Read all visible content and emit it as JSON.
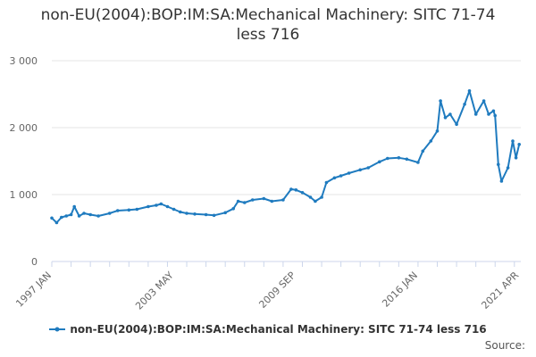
{
  "title_line1": "non-EU(2004):BOP:IM:SA:Mechanical Machinery: SITC 71-74",
  "title_line2": "less 716",
  "source_label": "Source:",
  "colors": {
    "series": "#1f7bbf",
    "grid": "#e6e6e6",
    "axis": "#ccd6eb",
    "text": "#666666"
  },
  "chart_data": {
    "type": "line",
    "title": "non-EU(2004):BOP:IM:SA:Mechanical Machinery: SITC 71-74 less 716",
    "xlabel": "",
    "ylabel": "",
    "x_range": [
      "1997-01",
      "2021-05"
    ],
    "ylim": [
      0,
      3000
    ],
    "y_ticks": [
      0,
      1000,
      2000,
      3000
    ],
    "y_tick_labels": [
      "0",
      "1 000",
      "2 000",
      "3 000"
    ],
    "x_tick_labels": [
      {
        "label": "1997 JAN",
        "date": "1997-01"
      },
      {
        "label": "2003 MAY",
        "date": "2003-05"
      },
      {
        "label": "2009 SEP",
        "date": "2009-09"
      },
      {
        "label": "2016 JAN",
        "date": "2016-01"
      },
      {
        "label": "2021 APR",
        "date": "2021-04"
      }
    ],
    "grid": true,
    "legend": "bottom-center",
    "series": [
      {
        "name": "non-EU(2004):BOP:IM:SA:Mechanical Machinery: SITC 71-74 less 716",
        "points": [
          [
            "1997-01",
            650
          ],
          [
            "1997-04",
            580
          ],
          [
            "1997-07",
            660
          ],
          [
            "1997-10",
            680
          ],
          [
            "1998-01",
            700
          ],
          [
            "1998-03",
            820
          ],
          [
            "1998-06",
            680
          ],
          [
            "1998-09",
            720
          ],
          [
            "1999-01",
            700
          ],
          [
            "1999-06",
            680
          ],
          [
            "2000-01",
            720
          ],
          [
            "2000-06",
            760
          ],
          [
            "2001-01",
            770
          ],
          [
            "2001-06",
            780
          ],
          [
            "2002-01",
            820
          ],
          [
            "2002-06",
            840
          ],
          [
            "2002-09",
            860
          ],
          [
            "2003-01",
            820
          ],
          [
            "2003-05",
            780
          ],
          [
            "2003-09",
            740
          ],
          [
            "2004-01",
            720
          ],
          [
            "2004-06",
            710
          ],
          [
            "2005-01",
            700
          ],
          [
            "2005-06",
            690
          ],
          [
            "2006-01",
            730
          ],
          [
            "2006-06",
            790
          ],
          [
            "2006-09",
            900
          ],
          [
            "2007-01",
            880
          ],
          [
            "2007-06",
            920
          ],
          [
            "2008-01",
            940
          ],
          [
            "2008-06",
            900
          ],
          [
            "2009-01",
            920
          ],
          [
            "2009-06",
            1080
          ],
          [
            "2009-09",
            1070
          ],
          [
            "2010-01",
            1030
          ],
          [
            "2010-06",
            960
          ],
          [
            "2010-09",
            900
          ],
          [
            "2011-01",
            960
          ],
          [
            "2011-04",
            1180
          ],
          [
            "2011-09",
            1250
          ],
          [
            "2012-01",
            1280
          ],
          [
            "2012-06",
            1320
          ],
          [
            "2013-01",
            1370
          ],
          [
            "2013-06",
            1400
          ],
          [
            "2014-01",
            1490
          ],
          [
            "2014-06",
            1540
          ],
          [
            "2015-01",
            1550
          ],
          [
            "2015-06",
            1530
          ],
          [
            "2016-01",
            1480
          ],
          [
            "2016-04",
            1650
          ],
          [
            "2016-09",
            1800
          ],
          [
            "2017-01",
            1950
          ],
          [
            "2017-03",
            2400
          ],
          [
            "2017-06",
            2150
          ],
          [
            "2017-09",
            2200
          ],
          [
            "2018-01",
            2050
          ],
          [
            "2018-06",
            2350
          ],
          [
            "2018-09",
            2550
          ],
          [
            "2019-01",
            2200
          ],
          [
            "2019-06",
            2400
          ],
          [
            "2019-09",
            2200
          ],
          [
            "2019-12",
            2250
          ],
          [
            "2020-01",
            2180
          ],
          [
            "2020-03",
            1450
          ],
          [
            "2020-05",
            1200
          ],
          [
            "2020-09",
            1400
          ],
          [
            "2020-12",
            1800
          ],
          [
            "2021-02",
            1550
          ],
          [
            "2021-04",
            1750
          ]
        ]
      }
    ]
  }
}
